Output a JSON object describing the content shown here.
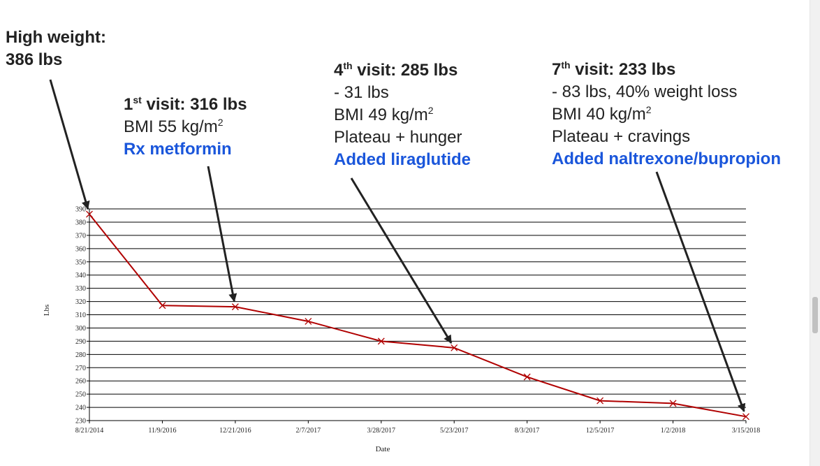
{
  "annotations": {
    "high": {
      "line1": "High weight:",
      "line2": "386 lbs"
    },
    "visit1": {
      "num": "1",
      "suffix": "st",
      "heading": " visit: 316 lbs",
      "bmi": "BMI 55 kg/m",
      "bmi_exp": "2",
      "rx": "Rx metformin"
    },
    "visit4": {
      "num": "4",
      "suffix": "th",
      "heading": " visit: 285 lbs",
      "change": "- 31 lbs",
      "bmi": "BMI 49 kg/m",
      "bmi_exp": "2",
      "note": "Plateau + hunger",
      "rx": "Added liraglutide"
    },
    "visit7": {
      "num": "7",
      "suffix": "th",
      "heading": " visit: 233 lbs",
      "change": "- 83 lbs, 40% weight loss",
      "bmi": "BMI 40 kg/m",
      "bmi_exp": "2",
      "note": "Plateau + cravings",
      "rx": "Added naltrexone/bupropion"
    }
  },
  "colors": {
    "line": "#b00000",
    "arrow": "#222222",
    "text": "#222222",
    "rx": "#1a56db"
  },
  "chart_data": {
    "type": "line",
    "xlabel": "Date",
    "ylabel": "Lbs",
    "ylim": [
      230,
      390
    ],
    "ytick_step": 10,
    "grid": "horizontal",
    "categories": [
      "8/21/2014",
      "11/9/2016",
      "12/21/2016",
      "2/7/2017",
      "3/28/2017",
      "5/23/2017",
      "8/3/2017",
      "12/5/2017",
      "1/2/2018",
      "3/15/2018"
    ],
    "series": [
      {
        "values": [
          386,
          317,
          316,
          305,
          290,
          285,
          263,
          245,
          243,
          233
        ]
      }
    ],
    "arrow_targets": [
      0,
      2,
      5,
      9
    ]
  }
}
